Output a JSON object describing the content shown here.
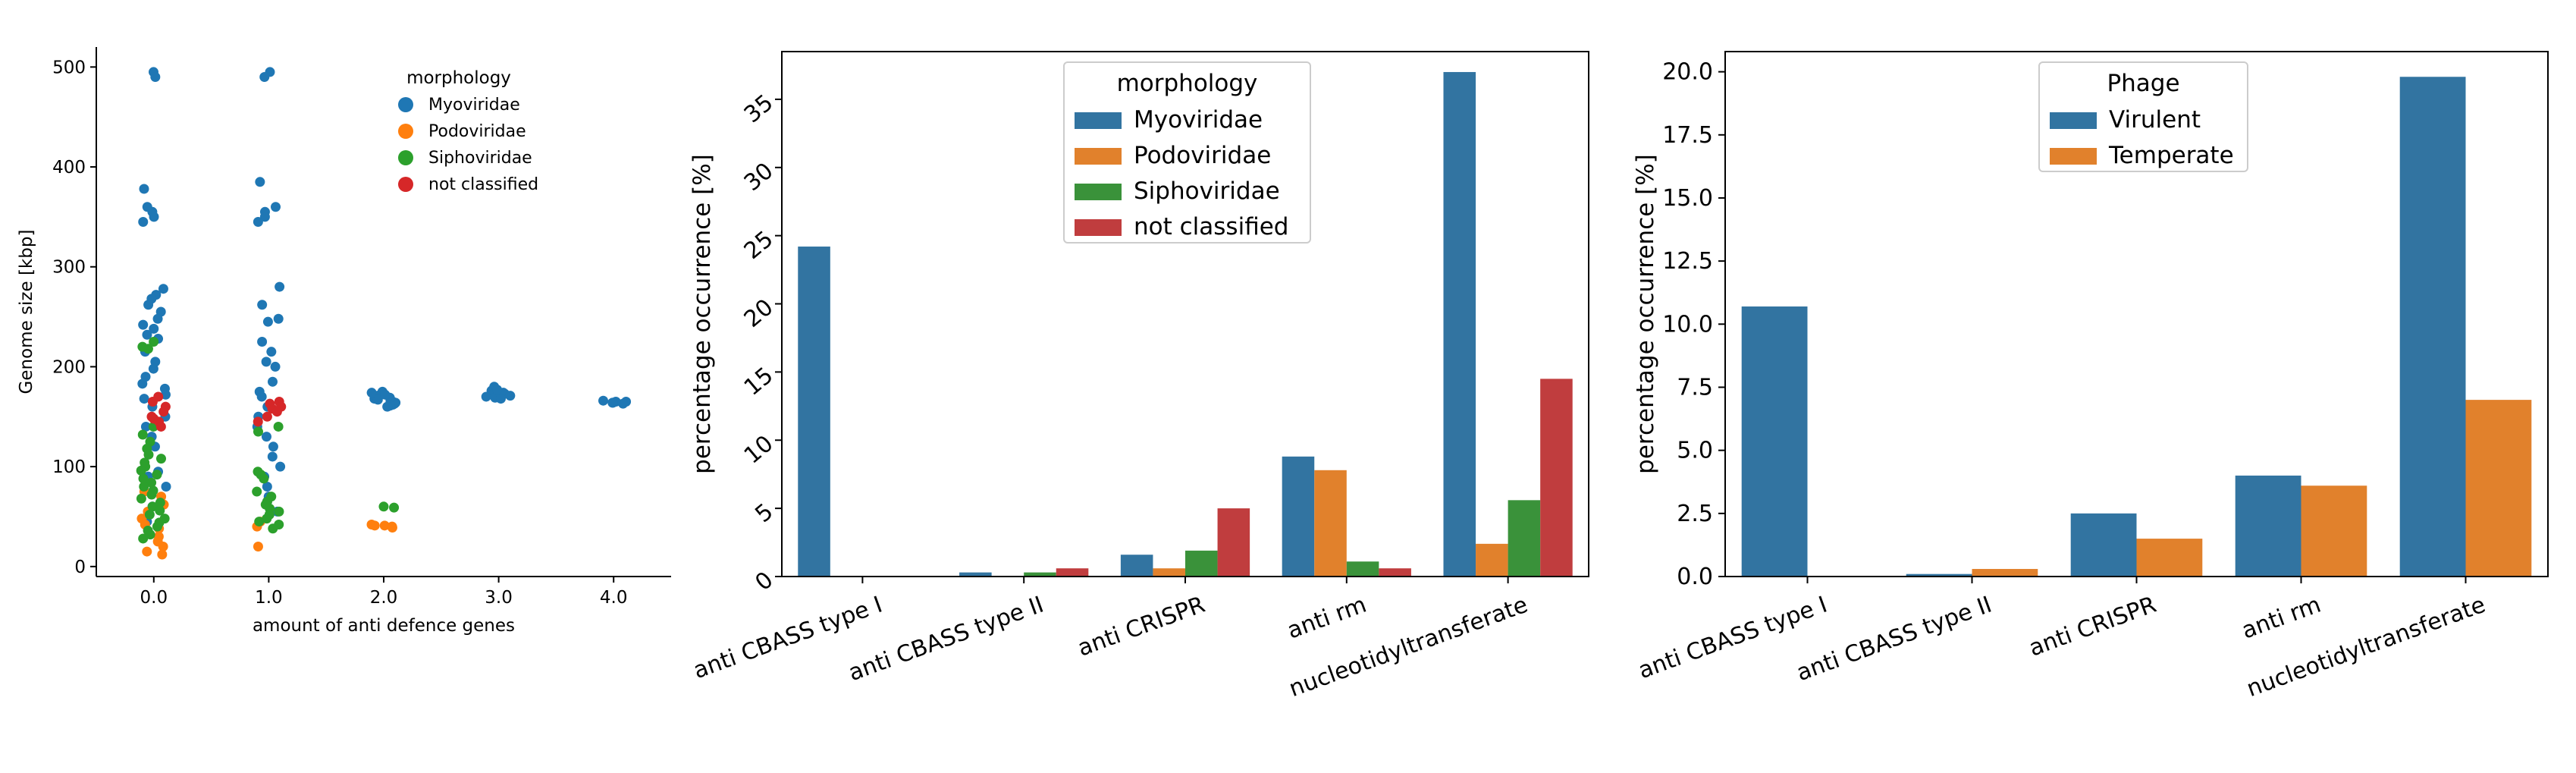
{
  "chart_data": [
    {
      "type": "scatter",
      "xlabel": "amount of anti defence genes",
      "ylabel": "Genome size [kbp]",
      "xlim": [
        -0.5,
        4.5
      ],
      "ylim": [
        -10,
        520
      ],
      "x_ticks": [
        "0.0",
        "1.0",
        "2.0",
        "3.0",
        "4.0"
      ],
      "y_ticks": [
        "0",
        "100",
        "200",
        "300",
        "400",
        "500"
      ],
      "legend_title": "morphology",
      "legend_position": "upper-center",
      "series": [
        {
          "name": "Myoviridae",
          "color": "#1f77b4",
          "points": [
            [
              0,
              495
            ],
            [
              0,
              490
            ],
            [
              0,
              378
            ],
            [
              0,
              360
            ],
            [
              0,
              355
            ],
            [
              0,
              350
            ],
            [
              0,
              345
            ],
            [
              0,
              278
            ],
            [
              0,
              272
            ],
            [
              0,
              268
            ],
            [
              0,
              262
            ],
            [
              0,
              255
            ],
            [
              0,
              248
            ],
            [
              0,
              242
            ],
            [
              0,
              238
            ],
            [
              0,
              232
            ],
            [
              0,
              228
            ],
            [
              0,
              215
            ],
            [
              0,
              205
            ],
            [
              0,
              198
            ],
            [
              0,
              190
            ],
            [
              0,
              183
            ],
            [
              0,
              178
            ],
            [
              0,
              172
            ],
            [
              0,
              168
            ],
            [
              0,
              160
            ],
            [
              0,
              150
            ],
            [
              0,
              140
            ],
            [
              0,
              130
            ],
            [
              0,
              120
            ],
            [
              0,
              95
            ],
            [
              0,
              90
            ],
            [
              0,
              85
            ],
            [
              0,
              80
            ],
            [
              0,
              60
            ],
            [
              0,
              45
            ],
            [
              1,
              495
            ],
            [
              1,
              490
            ],
            [
              1,
              385
            ],
            [
              1,
              360
            ],
            [
              1,
              355
            ],
            [
              1,
              350
            ],
            [
              1,
              345
            ],
            [
              1,
              280
            ],
            [
              1,
              262
            ],
            [
              1,
              248
            ],
            [
              1,
              245
            ],
            [
              1,
              225
            ],
            [
              1,
              215
            ],
            [
              1,
              205
            ],
            [
              1,
              200
            ],
            [
              1,
              185
            ],
            [
              1,
              175
            ],
            [
              1,
              170
            ],
            [
              1,
              160
            ],
            [
              1,
              150
            ],
            [
              1,
              140
            ],
            [
              1,
              130
            ],
            [
              1,
              120
            ],
            [
              1,
              110
            ],
            [
              1,
              100
            ],
            [
              1,
              90
            ],
            [
              1,
              80
            ],
            [
              1,
              70
            ],
            [
              1,
              65
            ],
            [
              1,
              55
            ],
            [
              2,
              175
            ],
            [
              2,
              173
            ],
            [
              2,
              171
            ],
            [
              2,
              170
            ],
            [
              2,
              169
            ],
            [
              2,
              168
            ],
            [
              2,
              167
            ],
            [
              2,
              166
            ],
            [
              2,
              165
            ],
            [
              2,
              164
            ],
            [
              2,
              163
            ],
            [
              2,
              162
            ],
            [
              2,
              161
            ],
            [
              2,
              160
            ],
            [
              2,
              172
            ],
            [
              2,
              174
            ],
            [
              3,
              180
            ],
            [
              3,
              178
            ],
            [
              3,
              176
            ],
            [
              3,
              175
            ],
            [
              3,
              174
            ],
            [
              3,
              173
            ],
            [
              3,
              172
            ],
            [
              3,
              171
            ],
            [
              3,
              170
            ],
            [
              3,
              169
            ],
            [
              3,
              168
            ],
            [
              3,
              177
            ],
            [
              4,
              166
            ],
            [
              4,
              165
            ],
            [
              4,
              164
            ],
            [
              4,
              163
            ],
            [
              4,
              165
            ],
            [
              4,
              164
            ]
          ]
        },
        {
          "name": "Podoviridae",
          "color": "#ff7f0e",
          "points": [
            [
              0,
              75
            ],
            [
              0,
              70
            ],
            [
              0,
              62
            ],
            [
              0,
              55
            ],
            [
              0,
              48
            ],
            [
              0,
              42
            ],
            [
              0,
              38
            ],
            [
              0,
              30
            ],
            [
              0,
              25
            ],
            [
              0,
              20
            ],
            [
              0,
              15
            ],
            [
              0,
              12
            ],
            [
              1,
              45
            ],
            [
              1,
              40
            ],
            [
              1,
              20
            ],
            [
              2,
              42
            ],
            [
              2,
              41
            ],
            [
              2,
              40
            ],
            [
              2,
              39
            ],
            [
              2,
              41
            ]
          ]
        },
        {
          "name": "Siphoviridae",
          "color": "#2ca02c",
          "points": [
            [
              0,
              225
            ],
            [
              0,
              220
            ],
            [
              0,
              218
            ],
            [
              0,
              140
            ],
            [
              0,
              132
            ],
            [
              0,
              125
            ],
            [
              0,
              118
            ],
            [
              0,
              112
            ],
            [
              0,
              108
            ],
            [
              0,
              104
            ],
            [
              0,
              100
            ],
            [
              0,
              96
            ],
            [
              0,
              92
            ],
            [
              0,
              88
            ],
            [
              0,
              84
            ],
            [
              0,
              80
            ],
            [
              0,
              76
            ],
            [
              0,
              72
            ],
            [
              0,
              68
            ],
            [
              0,
              64
            ],
            [
              0,
              60
            ],
            [
              0,
              56
            ],
            [
              0,
              52
            ],
            [
              0,
              48
            ],
            [
              0,
              44
            ],
            [
              0,
              40
            ],
            [
              0,
              36
            ],
            [
              0,
              32
            ],
            [
              0,
              28
            ],
            [
              1,
              140
            ],
            [
              1,
              135
            ],
            [
              1,
              95
            ],
            [
              1,
              92
            ],
            [
              1,
              88
            ],
            [
              1,
              75
            ],
            [
              1,
              70
            ],
            [
              1,
              65
            ],
            [
              1,
              62
            ],
            [
              1,
              58
            ],
            [
              1,
              55
            ],
            [
              1,
              52
            ],
            [
              1,
              48
            ],
            [
              1,
              45
            ],
            [
              1,
              42
            ],
            [
              1,
              38
            ],
            [
              2,
              60
            ],
            [
              2,
              59
            ]
          ]
        },
        {
          "name": "not classified",
          "color": "#d62728",
          "points": [
            [
              0,
              170
            ],
            [
              0,
              165
            ],
            [
              0,
              160
            ],
            [
              0,
              155
            ],
            [
              0,
              150
            ],
            [
              0,
              148
            ],
            [
              0,
              145
            ],
            [
              0,
              140
            ],
            [
              1,
              165
            ],
            [
              1,
              163
            ],
            [
              1,
              160
            ],
            [
              1,
              158
            ],
            [
              1,
              155
            ],
            [
              1,
              150
            ],
            [
              1,
              145
            ]
          ]
        }
      ]
    },
    {
      "type": "bar",
      "ylabel": "percentage occurrence [%]",
      "ylim": [
        0,
        38.5
      ],
      "y_ticks": [
        0,
        5,
        10,
        15,
        20,
        25,
        30,
        35
      ],
      "categories": [
        "anti CBASS type I",
        "anti CBASS type II",
        "anti CRISPR",
        "anti rm",
        "nucleotidyltransferate"
      ],
      "legend_title": "morphology",
      "legend_position": "upper-center",
      "series": [
        {
          "name": "Myoviridae",
          "color": "#3274a1",
          "values": [
            24.2,
            0.3,
            1.6,
            8.8,
            37.0
          ]
        },
        {
          "name": "Podoviridae",
          "color": "#e1812c",
          "values": [
            0.0,
            0.0,
            0.6,
            7.8,
            2.4
          ]
        },
        {
          "name": "Siphoviridae",
          "color": "#3a923a",
          "values": [
            0.0,
            0.3,
            1.9,
            1.1,
            5.6
          ]
        },
        {
          "name": "not classified",
          "color": "#c03d3e",
          "values": [
            0.0,
            0.6,
            5.0,
            0.6,
            14.5
          ]
        }
      ]
    },
    {
      "type": "bar",
      "ylabel": "percentage occurrence [%]",
      "ylim": [
        0,
        20.8
      ],
      "y_ticks": [
        "0.0",
        "2.5",
        "5.0",
        "7.5",
        "10.0",
        "12.5",
        "15.0",
        "17.5",
        "20.0"
      ],
      "categories": [
        "anti CBASS type I",
        "anti CBASS type II",
        "anti CRISPR",
        "anti rm",
        "nucleotidyltransferate"
      ],
      "legend_title": "Phage",
      "legend_position": "upper-center",
      "series": [
        {
          "name": "Virulent",
          "color": "#3274a1",
          "values": [
            10.7,
            0.1,
            2.5,
            4.0,
            19.8
          ]
        },
        {
          "name": "Temperate",
          "color": "#e1812c",
          "values": [
            0.0,
            0.3,
            1.5,
            3.6,
            7.0
          ]
        }
      ]
    }
  ]
}
